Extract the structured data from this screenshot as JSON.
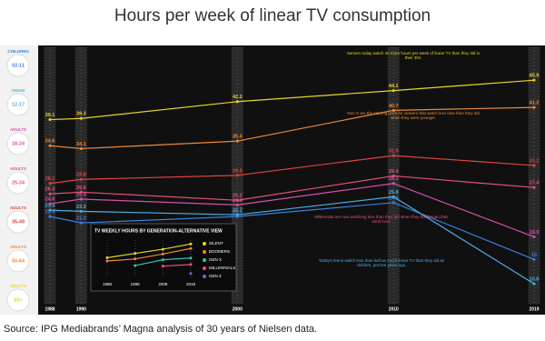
{
  "title": "Hours per week of linear TV consumption",
  "source": "Source:  IPG Mediabrands’ Magna analysis of 30 years of Nielsen data.",
  "chart_data": [
    {
      "type": "line",
      "x": [
        1988,
        1990,
        2000,
        2010,
        2019
      ],
      "xlim": [
        1988,
        2019
      ],
      "xticks": [
        1988,
        1990,
        2000,
        2010,
        2019
      ],
      "ylim": [
        8,
        50
      ],
      "series": [
        {
          "group": "CHILDREN",
          "name": "02-11",
          "color": "#3d7ee0",
          "values": [
            22.4,
            21.3,
            22.4,
            24.8,
            15.0
          ]
        },
        {
          "group": "TEENS",
          "name": "12-17",
          "color": "#49b3e6",
          "values": [
            23.5,
            23.3,
            22.7,
            25.8,
            10.8
          ]
        },
        {
          "group": "ADULTS",
          "name": "18-24",
          "color": "#d64fb0",
          "values": [
            24.6,
            25.4,
            24.4,
            28.1,
            18.9
          ]
        },
        {
          "group": "ADULTS",
          "name": "25-34",
          "color": "#e8507a",
          "values": [
            26.3,
            26.6,
            25.2,
            29.4,
            27.4
          ]
        },
        {
          "group": "ADULTS",
          "name": "35-49",
          "color": "#e2433f",
          "values": [
            28.1,
            28.8,
            29.5,
            32.9,
            31.2
          ]
        },
        {
          "group": "ADULTS",
          "name": "50-64",
          "color": "#ec8a3a",
          "values": [
            34.6,
            34.1,
            35.4,
            40.7,
            41.2
          ]
        },
        {
          "group": "ADULTS",
          "name": "65+",
          "color": "#e9d527",
          "values": [
            39.1,
            39.3,
            42.2,
            44.1,
            45.9
          ]
        }
      ],
      "annotations": [
        "Seniors today watch 20 more hours per week of linear TV than they did in their 30s.",
        "Gen X are the starting point for viewers that watch less time than they did when they were younger.",
        "Millennials are now watching less than they did when they first began their adult lives.",
        "Today's teens watch less than half as much linear TV than they did as children, just ten years ago."
      ]
    },
    {
      "type": "line",
      "title": "TV WEEKLY HOURS BY GENERATION-ALTERNATIVE VIEW",
      "categories": [
        "1988",
        "1998",
        "2008",
        "2018"
      ],
      "ylim": [
        10,
        50
      ],
      "series": [
        {
          "name": "SILENT",
          "color": "#e9d527",
          "values": [
            31.5,
            36.0,
            40.4,
            45.9
          ]
        },
        {
          "name": "BOOMERS",
          "color": "#ec8a3a",
          "values": [
            28.1,
            30.2,
            35.4,
            41.2
          ]
        },
        {
          "name": "GEN X",
          "color": "#2ec4b6",
          "values": [
            null,
            23.3,
            29.4,
            31.2
          ]
        },
        {
          "name": "MILLENNIALS",
          "color": "#e8507a",
          "values": [
            null,
            null,
            22.7,
            24.4
          ]
        },
        {
          "name": "GEN Z",
          "color": "#8e5ad6",
          "values": [
            null,
            null,
            null,
            15.0
          ]
        }
      ]
    }
  ]
}
